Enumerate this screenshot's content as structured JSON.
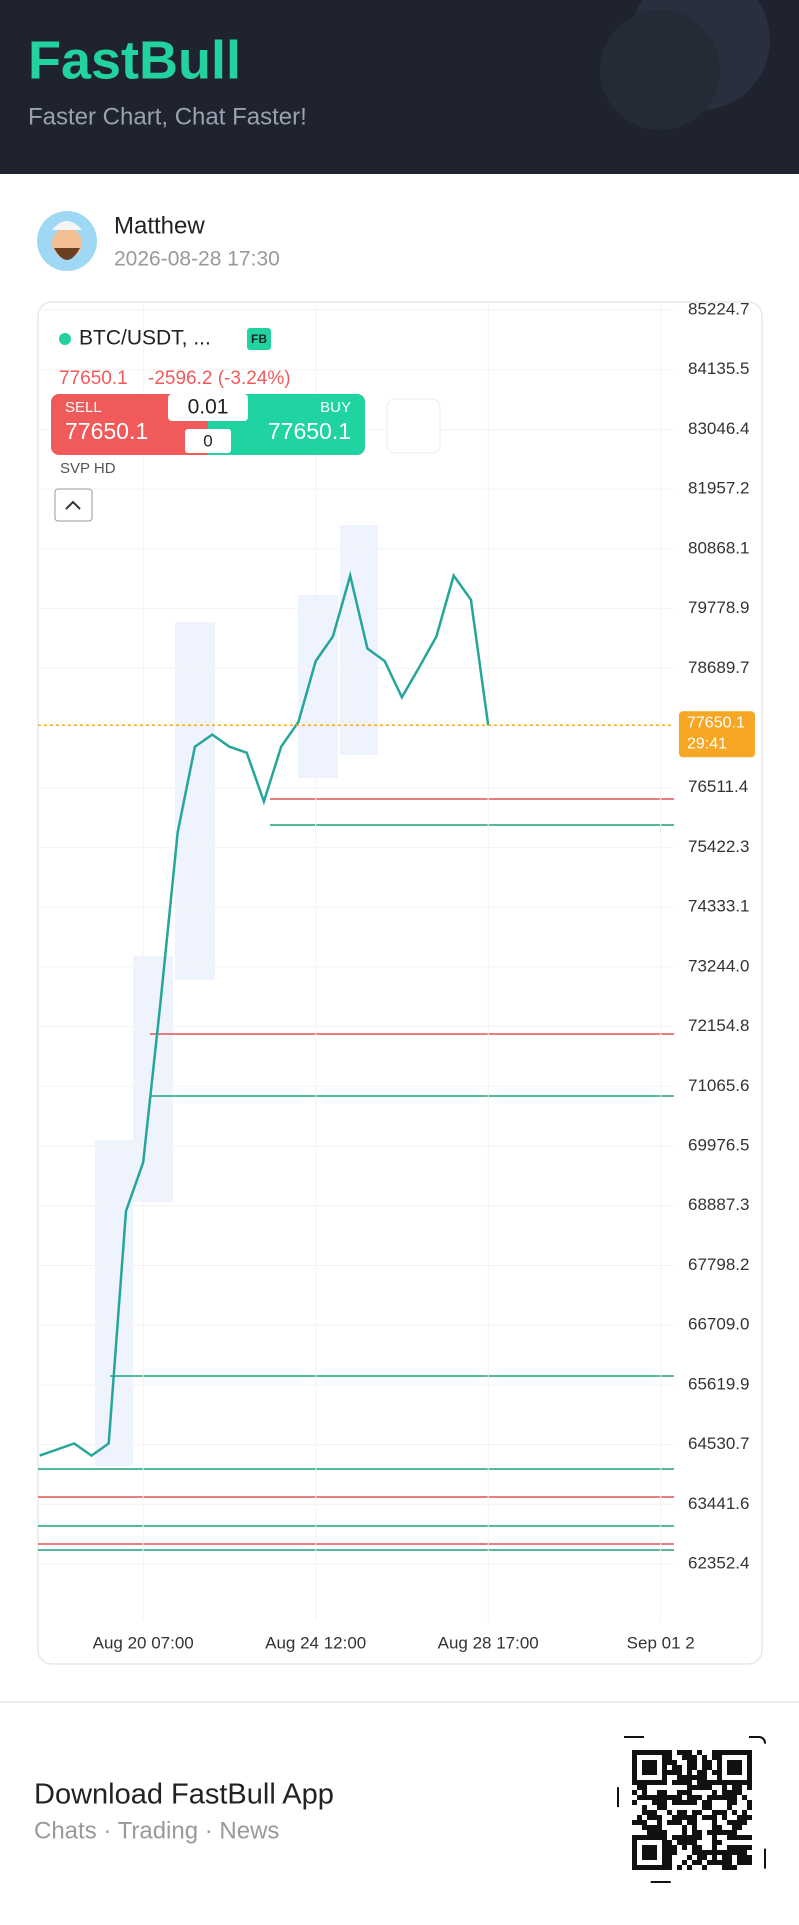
{
  "header": {
    "title": "FastBull",
    "subtitle": "Faster Chart, Chat Faster!"
  },
  "post": {
    "author": "Matthew",
    "time": "2026-08-28 17:30"
  },
  "chart_data": {
    "type": "line",
    "symbol": "BTC/USDT, ...",
    "badge": "FB",
    "last_price": 77650.1,
    "change": "-2596.2 (-3.24%)",
    "trade": {
      "sell_label": "SELL",
      "sell_price": 77650.1,
      "buy_label": "BUY",
      "buy_price": 77650.1,
      "lot": 0.01,
      "qty": 0
    },
    "indicator": "SVP HD",
    "current_price": 77650.1,
    "countdown": "29:41",
    "categories": [
      null,
      null,
      null,
      null,
      null,
      null,
      "Aug 20 07:00",
      null,
      null,
      null,
      null,
      null,
      null,
      null,
      null,
      null,
      "Aug 24 12:00",
      null,
      null,
      null,
      null,
      null,
      null,
      null,
      null,
      null,
      "Aug 28 17:00",
      null,
      null,
      null,
      null,
      null,
      null,
      null,
      null,
      null,
      "Sep 01 2"
    ],
    "values": [
      64330,
      64440,
      64550,
      64330,
      64550,
      68790,
      69680,
      72580,
      75700,
      77260,
      77480,
      77260,
      77150,
      76260,
      77260,
      77710,
      78820,
      79270,
      80380,
      79050,
      78820,
      78160,
      78710,
      79270,
      80380,
      79940,
      77650.1,
      null,
      null,
      null,
      null,
      null,
      null,
      null,
      null,
      null,
      null
    ],
    "color": "#26a69a",
    "ylim": [
      62352.4,
      85224.7
    ],
    "yticks": [
      85224.7,
      84135.5,
      83046.4,
      81957.2,
      80868.1,
      79778.9,
      78689.7,
      76511.4,
      75422.3,
      74333.1,
      {
        "value": 73244,
        "label": "73244.0"
      },
      72154.8,
      71065.6,
      69976.5,
      68887.3,
      67798.2,
      {
        "value": 66709,
        "label": "66709.0"
      },
      65619.9,
      64530.7,
      63441.6,
      62352.4
    ],
    "grid": true
  },
  "footer": {
    "title": "Download FastBull App",
    "tagline": "Chats · Trading · News"
  }
}
